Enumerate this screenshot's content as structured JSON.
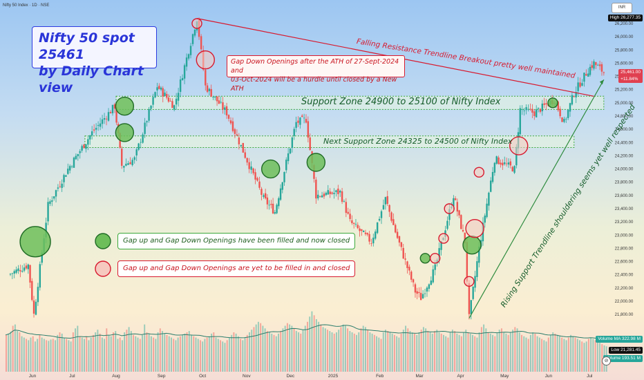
{
  "header": {
    "symbol": "Nifty 50 Index · 1D · NSE",
    "currency": "INR"
  },
  "chart_data": {
    "type": "candlestick",
    "title_lines": [
      "Nifty 50 spot 25461",
      "by Daily Chart view"
    ],
    "y_axis": {
      "min": 21800,
      "max": 26277,
      "ticks": [
        26200,
        26000,
        25800,
        25600,
        25400,
        25200,
        25000,
        24800,
        24600,
        24400,
        24200,
        24000,
        23800,
        23600,
        23400,
        23200,
        23000,
        22800,
        22600,
        22400,
        22200,
        22000,
        21800
      ],
      "tick_labels": [
        "26,200.00",
        "26,000.00",
        "25,800.00",
        "25,600.00",
        "25,400.00",
        "25,200.00",
        "25,000.00",
        "24,800.00",
        "24,600.00",
        "24,400.00",
        "24,200.00",
        "24,000.00",
        "23,800.00",
        "23,600.00",
        "23,400.00",
        "23,200.00",
        "23,000.00",
        "22,800.00",
        "22,600.00",
        "22,400.00",
        "22,200.00",
        "22,000.00",
        "21,800.00"
      ]
    },
    "x_axis": {
      "ticks": [
        "Jun",
        "Jul",
        "Aug",
        "Sep",
        "Oct",
        "Nov",
        "Dec",
        "2025",
        "Feb",
        "Mar",
        "Apr",
        "May",
        "Jun",
        "Jul"
      ]
    },
    "price_path": [
      {
        "date": "2024-05-17",
        "close": 22400
      },
      {
        "date": "2024-05-31",
        "close": 22550
      },
      {
        "date": "2024-06-04",
        "close": 21800
      },
      {
        "date": "2024-06-14",
        "close": 23450
      },
      {
        "date": "2024-06-28",
        "close": 24000
      },
      {
        "date": "2024-07-15",
        "close": 24550
      },
      {
        "date": "2024-07-31",
        "close": 24950
      },
      {
        "date": "2024-08-05",
        "close": 24050
      },
      {
        "date": "2024-08-14",
        "close": 24150
      },
      {
        "date": "2024-08-30",
        "close": 25250
      },
      {
        "date": "2024-09-11",
        "close": 24950
      },
      {
        "date": "2024-09-27",
        "close": 26277
      },
      {
        "date": "2024-10-03",
        "close": 25250
      },
      {
        "date": "2024-10-18",
        "close": 24850
      },
      {
        "date": "2024-10-31",
        "close": 24200
      },
      {
        "date": "2024-11-13",
        "close": 23550
      },
      {
        "date": "2024-11-21",
        "close": 23350
      },
      {
        "date": "2024-11-29",
        "close": 24100
      },
      {
        "date": "2024-12-06",
        "close": 24700
      },
      {
        "date": "2024-12-13",
        "close": 24750
      },
      {
        "date": "2024-12-20",
        "close": 23600
      },
      {
        "date": "2025-01-06",
        "close": 23650
      },
      {
        "date": "2025-01-13",
        "close": 23200
      },
      {
        "date": "2025-01-28",
        "close": 22900
      },
      {
        "date": "2025-02-07",
        "close": 23550
      },
      {
        "date": "2025-02-14",
        "close": 23050
      },
      {
        "date": "2025-02-28",
        "close": 22150
      },
      {
        "date": "2025-03-04",
        "close": 22050
      },
      {
        "date": "2025-03-14",
        "close": 22500
      },
      {
        "date": "2025-03-27",
        "close": 23600
      },
      {
        "date": "2025-04-04",
        "close": 22900
      },
      {
        "date": "2025-04-07",
        "close": 21750
      },
      {
        "date": "2025-04-14",
        "close": 22800
      },
      {
        "date": "2025-04-25",
        "close": 24150
      },
      {
        "date": "2025-05-09",
        "close": 24000
      },
      {
        "date": "2025-05-13",
        "close": 24900
      },
      {
        "date": "2025-05-23",
        "close": 24850
      },
      {
        "date": "2025-06-06",
        "close": 25050
      },
      {
        "date": "2025-06-13",
        "close": 24700
      },
      {
        "date": "2025-06-20",
        "close": 25150
      },
      {
        "date": "2025-06-30",
        "close": 25500
      },
      {
        "date": "2025-07-04",
        "close": 25600
      },
      {
        "date": "2025-07-11",
        "close": 25461
      }
    ],
    "zones": [
      {
        "name": "Support Zone 24900 to 25100",
        "low": 24900,
        "high": 25100,
        "start": "2024-08-01",
        "end": "2025-07-11"
      },
      {
        "name": "Next Support Zone 24325 to 24500",
        "low": 24325,
        "high": 24500,
        "start": "2024-07-10",
        "end": "2025-06-20"
      }
    ],
    "trendlines": [
      {
        "name": "Falling Resistance",
        "color": "#d8192e",
        "from": {
          "date": "2024-09-27",
          "price": 26277
        },
        "to": {
          "date": "2025-07-04",
          "price": 25100
        }
      },
      {
        "name": "Rising Support",
        "color": "#2e8b3e",
        "from": {
          "date": "2025-04-07",
          "price": 21743
        },
        "to": {
          "date": "2025-07-11",
          "price": 25350
        }
      }
    ],
    "gap_circles": [
      {
        "status": "filled",
        "date": "2024-06-05",
        "price": 22900,
        "size": "large"
      },
      {
        "status": "filled",
        "date": "2024-08-07",
        "price": 24950,
        "size": "medium"
      },
      {
        "status": "filled",
        "date": "2024-08-07",
        "price": 24550,
        "size": "medium"
      },
      {
        "status": "unfilled",
        "date": "2024-09-27",
        "price": 26200,
        "size": "small"
      },
      {
        "status": "unfilled",
        "date": "2024-10-03",
        "price": 25650,
        "size": "medium"
      },
      {
        "status": "filled",
        "date": "2024-11-18",
        "price": 24000,
        "size": "medium"
      },
      {
        "status": "filled",
        "date": "2024-12-20",
        "price": 24100,
        "size": "medium"
      },
      {
        "status": "filled",
        "date": "2025-03-07",
        "price": 22650,
        "size": "small"
      },
      {
        "status": "unfilled",
        "date": "2025-03-14",
        "price": 22650,
        "size": "small"
      },
      {
        "status": "unfilled",
        "date": "2025-03-20",
        "price": 22950,
        "size": "small"
      },
      {
        "status": "unfilled",
        "date": "2025-03-24",
        "price": 23400,
        "size": "small"
      },
      {
        "status": "filled",
        "date": "2025-04-09",
        "price": 22850,
        "size": "medium"
      },
      {
        "status": "unfilled",
        "date": "2025-04-11",
        "price": 23100,
        "size": "medium"
      },
      {
        "status": "unfilled",
        "date": "2025-04-07",
        "price": 22300,
        "size": "small"
      },
      {
        "status": "unfilled",
        "date": "2025-04-14",
        "price": 23950,
        "size": "small"
      },
      {
        "status": "unfilled",
        "date": "2025-05-12",
        "price": 24350,
        "size": "medium"
      },
      {
        "status": "filled",
        "date": "2025-06-05",
        "price": 25000,
        "size": "small"
      }
    ],
    "volume": {
      "ma_value": 322.98,
      "ma_unit": "M",
      "last_value": 193.51,
      "last_unit": "M",
      "bars": [
        280,
        290,
        305,
        350,
        360,
        310,
        300,
        270,
        260,
        250,
        240,
        260,
        270,
        230,
        250,
        280,
        260,
        250,
        240,
        235,
        245,
        250,
        240,
        280,
        300,
        290,
        260,
        250,
        240,
        230,
        300,
        330,
        350,
        270,
        260,
        250,
        270,
        240,
        260,
        280,
        300,
        320,
        290,
        260,
        250,
        330,
        280,
        270,
        300,
        310,
        250,
        260,
        240,
        300,
        320,
        340,
        310,
        280,
        270,
        260,
        250,
        280,
        360,
        300,
        290,
        270,
        260,
        250,
        300,
        330,
        310,
        290,
        280,
        270,
        260,
        250,
        240,
        260,
        270,
        280,
        290,
        300,
        310,
        280,
        270,
        260,
        250,
        240,
        230,
        250,
        260,
        270,
        290,
        300,
        260,
        250,
        240,
        230,
        220,
        240,
        260,
        280,
        300,
        290,
        270,
        250,
        240,
        260,
        280,
        300,
        320,
        340,
        360,
        380,
        370,
        350,
        330,
        310,
        300,
        290,
        280,
        270,
        290,
        310,
        330,
        350,
        370,
        360,
        350,
        330,
        310,
        300,
        290,
        320,
        350,
        380,
        420,
        460,
        430,
        400,
        380,
        360,
        340,
        330,
        320,
        310,
        300,
        290,
        300,
        320,
        340,
        360,
        350,
        330,
        310,
        300,
        290,
        280,
        300,
        330,
        350,
        340,
        320,
        300,
        290,
        280,
        270,
        260,
        250,
        300,
        320,
        310,
        300,
        290,
        280,
        270,
        260,
        290,
        320,
        350,
        330,
        310,
        300,
        290,
        280,
        300,
        320,
        340,
        330,
        310,
        300,
        290,
        310,
        320,
        300,
        290,
        280,
        270,
        260,
        300,
        320,
        310,
        290,
        280,
        270,
        300,
        320,
        300,
        290,
        280,
        270,
        260,
        300,
        340,
        360,
        330,
        300,
        290,
        280,
        270,
        300,
        320,
        330,
        300,
        290,
        280,
        300,
        320,
        340,
        330,
        300,
        280,
        270,
        260,
        250,
        280,
        300,
        290,
        270,
        260,
        250,
        240,
        230,
        260,
        280,
        300,
        290,
        280,
        270,
        260,
        250,
        240,
        260,
        280,
        270,
        260,
        250,
        240,
        230,
        220,
        230,
        250,
        260,
        250,
        240,
        230,
        220,
        210,
        200,
        193
      ]
    },
    "labels": {
      "high_caption": "High",
      "high_value": "26,277.35",
      "last_price": "25,461.00",
      "last_change": "+11.84%",
      "vol_ma_caption": "Volume MA",
      "vol_ma_value": "322.98 M",
      "low_caption": "Low",
      "low_value": "21,281.45",
      "volume_caption": "Volume",
      "volume_value": "193.51 M"
    },
    "annotations": {
      "gap_note": [
        "Gap Down Openings after the ATH of 27-Sept-2024 and",
        "03-Oct-2024 will be a hurdle until closed by a New ATH"
      ],
      "resistance": "Falling Resistance Trendline Breakout pretty well maintained",
      "support1": "Support Zone 24900 to 25100 of Nifty Index",
      "support2": "Next Support Zone 24325 to 24500 of Nifty Index",
      "rising": "Rising Support Trendline shouldering seems yet well respected"
    },
    "legend": [
      "Gap up and Gap Down Openings have been filled and now closed",
      "Gap up and Gap Down Openings are yet to be filled in and closed"
    ],
    "colors": {
      "up": "#26a69a",
      "down": "#ef5350",
      "resistance": "#d8192e",
      "support": "#2e8b3e",
      "filled_circle_fill": "#6dbe5a",
      "filled_circle_stroke": "#1f6b25",
      "unfilled_circle_fill": "#f6c9bf",
      "unfilled_circle_stroke": "#d8192e",
      "zone_stroke": "#3aa83a",
      "zone_fill": "#e9f7df",
      "volume_ma": "#2a7d6b"
    }
  }
}
